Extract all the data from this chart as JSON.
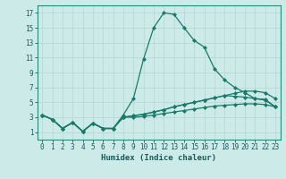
{
  "xlabel": "Humidex (Indice chaleur)",
  "background_color": "#cceae8",
  "grid_color": "#b8d8d6",
  "line_color": "#1a7a6a",
  "xlim": [
    -0.5,
    23.5
  ],
  "ylim": [
    0,
    18
  ],
  "xticks": [
    0,
    1,
    2,
    3,
    4,
    5,
    6,
    7,
    8,
    9,
    10,
    11,
    12,
    13,
    14,
    15,
    16,
    17,
    18,
    19,
    20,
    21,
    22,
    23
  ],
  "yticks": [
    1,
    3,
    5,
    7,
    9,
    11,
    13,
    15,
    17
  ],
  "series": [
    [
      3.3,
      2.7,
      1.5,
      2.3,
      1.1,
      2.2,
      1.5,
      1.5,
      3.3,
      5.5,
      10.8,
      15.0,
      17.0,
      16.8,
      15.0,
      13.3,
      12.4,
      9.5,
      8.0,
      7.0,
      6.3,
      5.5,
      5.3,
      4.4
    ],
    [
      3.3,
      2.7,
      1.5,
      2.3,
      1.1,
      2.2,
      1.5,
      1.5,
      3.0,
      3.2,
      3.4,
      3.7,
      4.0,
      4.4,
      4.7,
      5.0,
      5.3,
      5.6,
      5.9,
      6.2,
      6.5,
      6.5,
      6.3,
      5.5
    ],
    [
      3.3,
      2.7,
      1.5,
      2.3,
      1.1,
      2.2,
      1.5,
      1.5,
      3.0,
      3.2,
      3.4,
      3.7,
      4.0,
      4.4,
      4.7,
      5.0,
      5.3,
      5.6,
      5.9,
      5.8,
      5.7,
      5.5,
      5.4,
      4.4
    ],
    [
      3.3,
      2.7,
      1.5,
      2.3,
      1.1,
      2.2,
      1.5,
      1.5,
      3.0,
      3.0,
      3.1,
      3.3,
      3.5,
      3.7,
      3.9,
      4.1,
      4.3,
      4.5,
      4.6,
      4.7,
      4.8,
      4.8,
      4.7,
      4.4
    ]
  ]
}
